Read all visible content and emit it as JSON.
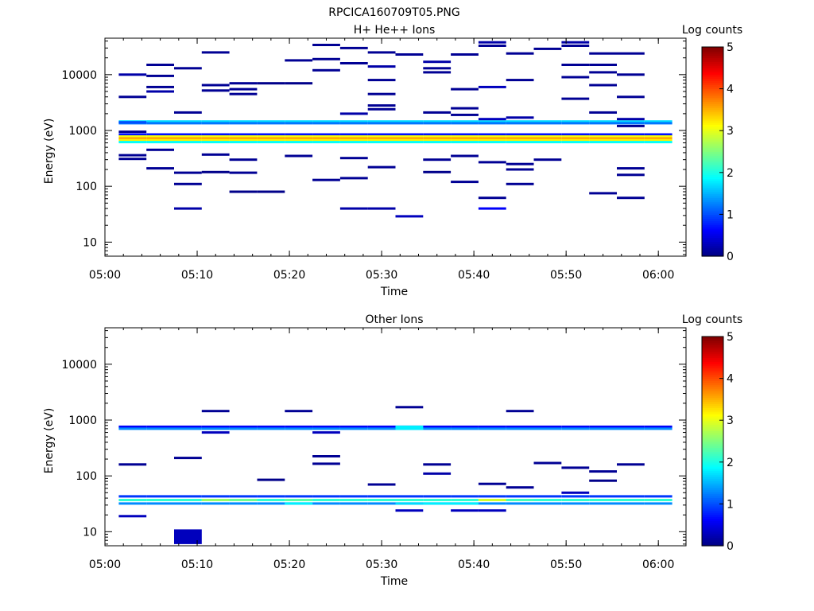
{
  "page_title": "RPCICA160709T05.PNG",
  "chart_data": [
    {
      "type": "heatmap",
      "title": "H+ He++ Ions",
      "xlabel": "Time",
      "ylabel": "Energy (eV)",
      "yscale": "log",
      "ylim": [
        5.6,
        45000
      ],
      "xlim": [
        "05:00",
        "06:03"
      ],
      "x_ticks": [
        "05:00",
        "05:10",
        "05:20",
        "05:30",
        "05:40",
        "05:50",
        "06:00"
      ],
      "y_ticks": [
        "10",
        "100",
        "1000",
        "10000"
      ],
      "colorbar": {
        "label": "Log counts",
        "range": [
          0,
          5
        ],
        "ticks": [
          "0",
          "1",
          "2",
          "3",
          "4",
          "5"
        ],
        "colormap": "jet"
      },
      "grid": false,
      "time_bins": [
        "05:03",
        "05:06",
        "05:09",
        "05:12",
        "05:15",
        "05:18",
        "05:21",
        "05:24",
        "05:27",
        "05:30",
        "05:33",
        "05:36",
        "05:39",
        "05:42",
        "05:45",
        "05:48",
        "05:51",
        "05:54",
        "05:57",
        "06:00"
      ],
      "cells": [
        {
          "t": "05:03",
          "e": 10000,
          "v": 0.2
        },
        {
          "t": "05:03",
          "e": 4000,
          "v": 0.1
        },
        {
          "t": "05:03",
          "e": 1400,
          "v": 1.0
        },
        {
          "t": "05:03",
          "e": 950,
          "v": 0.1
        },
        {
          "t": "05:03",
          "e": 360,
          "v": 0.1
        },
        {
          "t": "05:03",
          "e": 310,
          "v": 0.1
        },
        {
          "t": "05:06",
          "e": 15000,
          "v": 0.1
        },
        {
          "t": "05:06",
          "e": 9500,
          "v": 0.1
        },
        {
          "t": "05:06",
          "e": 6000,
          "v": 0.1
        },
        {
          "t": "05:06",
          "e": 5000,
          "v": 0.2
        },
        {
          "t": "05:06",
          "e": 450,
          "v": 0.1
        },
        {
          "t": "05:06",
          "e": 210,
          "v": 0.1
        },
        {
          "t": "05:09",
          "e": 13000,
          "v": 0.1
        },
        {
          "t": "05:09",
          "e": 2100,
          "v": 0.1
        },
        {
          "t": "05:09",
          "e": 175,
          "v": 0.1
        },
        {
          "t": "05:09",
          "e": 110,
          "v": 0.1
        },
        {
          "t": "05:09",
          "e": 40,
          "v": 0.2
        },
        {
          "t": "05:12",
          "e": 25000,
          "v": 0.1
        },
        {
          "t": "05:12",
          "e": 6500,
          "v": 0.1
        },
        {
          "t": "05:12",
          "e": 5200,
          "v": 0.1
        },
        {
          "t": "05:12",
          "e": 370,
          "v": 0.1
        },
        {
          "t": "05:12",
          "e": 180,
          "v": 0.05
        },
        {
          "t": "05:15",
          "e": 7000,
          "v": 0.1
        },
        {
          "t": "05:15",
          "e": 5500,
          "v": 0.1
        },
        {
          "t": "05:15",
          "e": 4500,
          "v": 0.1
        },
        {
          "t": "05:15",
          "e": 300,
          "v": 0.1
        },
        {
          "t": "05:15",
          "e": 175,
          "v": 0.1
        },
        {
          "t": "05:15",
          "e": 80,
          "v": 0.05
        },
        {
          "t": "05:18",
          "e": 7000,
          "v": 0.05
        },
        {
          "t": "05:18",
          "e": 80,
          "v": 0.05
        },
        {
          "t": "05:21",
          "e": 18000,
          "v": 0.1
        },
        {
          "t": "05:21",
          "e": 7000,
          "v": 0.05
        },
        {
          "t": "05:21",
          "e": 350,
          "v": 0.1
        },
        {
          "t": "05:24",
          "e": 34000,
          "v": 0.1
        },
        {
          "t": "05:24",
          "e": 19000,
          "v": 0.1
        },
        {
          "t": "05:24",
          "e": 12000,
          "v": 0.1
        },
        {
          "t": "05:24",
          "e": 130,
          "v": 0.1
        },
        {
          "t": "05:27",
          "e": 30000,
          "v": 0.1
        },
        {
          "t": "05:27",
          "e": 16000,
          "v": 0.1
        },
        {
          "t": "05:27",
          "e": 2000,
          "v": 0.2
        },
        {
          "t": "05:27",
          "e": 320,
          "v": 0.1
        },
        {
          "t": "05:27",
          "e": 140,
          "v": 0.1
        },
        {
          "t": "05:27",
          "e": 40,
          "v": 0.2
        },
        {
          "t": "05:30",
          "e": 25000,
          "v": 0.1
        },
        {
          "t": "05:30",
          "e": 14000,
          "v": 0.2
        },
        {
          "t": "05:30",
          "e": 8000,
          "v": 0.1
        },
        {
          "t": "05:30",
          "e": 4500,
          "v": 0.1
        },
        {
          "t": "05:30",
          "e": 2800,
          "v": 0.1
        },
        {
          "t": "05:30",
          "e": 2400,
          "v": 0.1
        },
        {
          "t": "05:30",
          "e": 220,
          "v": 0.1
        },
        {
          "t": "05:30",
          "e": 40,
          "v": 0.2
        },
        {
          "t": "05:33",
          "e": 23000,
          "v": 0.1
        },
        {
          "t": "05:33",
          "e": 29,
          "v": 0.3
        },
        {
          "t": "05:36",
          "e": 17000,
          "v": 0.2
        },
        {
          "t": "05:36",
          "e": 13000,
          "v": 0.1
        },
        {
          "t": "05:36",
          "e": 11000,
          "v": 0.1
        },
        {
          "t": "05:36",
          "e": 2100,
          "v": 0.1
        },
        {
          "t": "05:36",
          "e": 300,
          "v": 0.1
        },
        {
          "t": "05:36",
          "e": 180,
          "v": 0.05
        },
        {
          "t": "05:39",
          "e": 23000,
          "v": 0.1
        },
        {
          "t": "05:39",
          "e": 5500,
          "v": 0.1
        },
        {
          "t": "05:39",
          "e": 2500,
          "v": 0.1
        },
        {
          "t": "05:39",
          "e": 1900,
          "v": 0.1
        },
        {
          "t": "05:39",
          "e": 350,
          "v": 0.1
        },
        {
          "t": "05:39",
          "e": 120,
          "v": 0.1
        },
        {
          "t": "05:42",
          "e": 38000,
          "v": 0.2
        },
        {
          "t": "05:42",
          "e": 33000,
          "v": 0.1
        },
        {
          "t": "05:42",
          "e": 6000,
          "v": 0.3
        },
        {
          "t": "05:42",
          "e": 1600,
          "v": 0.3
        },
        {
          "t": "05:42",
          "e": 270,
          "v": 0.1
        },
        {
          "t": "05:42",
          "e": 62,
          "v": 0.1
        },
        {
          "t": "05:42",
          "e": 40,
          "v": 0.6
        },
        {
          "t": "05:45",
          "e": 24000,
          "v": 0.1
        },
        {
          "t": "05:45",
          "e": 8000,
          "v": 0.1
        },
        {
          "t": "05:45",
          "e": 1700,
          "v": 0.2
        },
        {
          "t": "05:45",
          "e": 250,
          "v": 0.1
        },
        {
          "t": "05:45",
          "e": 200,
          "v": 0.1
        },
        {
          "t": "05:45",
          "e": 110,
          "v": 0.1
        },
        {
          "t": "05:48",
          "e": 29000,
          "v": 0.1
        },
        {
          "t": "05:48",
          "e": 300,
          "v": 0.1
        },
        {
          "t": "05:51",
          "e": 38000,
          "v": 0.2
        },
        {
          "t": "05:51",
          "e": 33000,
          "v": 0.1
        },
        {
          "t": "05:51",
          "e": 15000,
          "v": 0.1
        },
        {
          "t": "05:51",
          "e": 9000,
          "v": 0.1
        },
        {
          "t": "05:51",
          "e": 3700,
          "v": 0.1
        },
        {
          "t": "05:54",
          "e": 24000,
          "v": 0.1
        },
        {
          "t": "05:54",
          "e": 15000,
          "v": 0.1
        },
        {
          "t": "05:54",
          "e": 11000,
          "v": 0.1
        },
        {
          "t": "05:54",
          "e": 6500,
          "v": 0.1
        },
        {
          "t": "05:54",
          "e": 2100,
          "v": 0.1
        },
        {
          "t": "05:54",
          "e": 75,
          "v": 0.1
        },
        {
          "t": "05:57",
          "e": 24000,
          "v": 0.1
        },
        {
          "t": "05:57",
          "e": 10000,
          "v": 0.1
        },
        {
          "t": "05:57",
          "e": 4000,
          "v": 0.1
        },
        {
          "t": "05:57",
          "e": 1600,
          "v": 0.2
        },
        {
          "t": "05:57",
          "e": 1200,
          "v": 0.1
        },
        {
          "t": "05:57",
          "e": 210,
          "v": 0.1
        },
        {
          "t": "05:57",
          "e": 160,
          "v": 0.1
        },
        {
          "t": "05:57",
          "e": 62,
          "v": 0.1
        }
      ],
      "bands": [
        {
          "t_from": "05:03",
          "t_to": "06:00",
          "e": 1450,
          "v": 1.7
        },
        {
          "t_from": "05:03",
          "t_to": "06:00",
          "e": 1350,
          "v": 1.2
        },
        {
          "t_from": "05:03",
          "t_to": "06:00",
          "e": 850,
          "v": 0.7
        },
        {
          "t_from": "05:03",
          "t_to": "06:00",
          "e": 780,
          "v": 3.1
        },
        {
          "t_from": "05:03",
          "t_to": "06:00",
          "e": 720,
          "v": 3.6
        },
        {
          "t_from": "05:03",
          "t_to": "06:00",
          "e": 670,
          "v": 3.2
        },
        {
          "t_from": "05:03",
          "t_to": "06:00",
          "e": 620,
          "v": 1.9
        }
      ]
    },
    {
      "type": "heatmap",
      "title": "Other Ions",
      "xlabel": "Time",
      "ylabel": "Energy (eV)",
      "yscale": "log",
      "ylim": [
        5.6,
        45000
      ],
      "xlim": [
        "05:00",
        "06:03"
      ],
      "x_ticks": [
        "05:00",
        "05:10",
        "05:20",
        "05:30",
        "05:40",
        "05:50",
        "06:00"
      ],
      "y_ticks": [
        "10",
        "100",
        "1000",
        "10000"
      ],
      "colorbar": {
        "label": "Log counts",
        "range": [
          0,
          5
        ],
        "ticks": [
          "0",
          "1",
          "2",
          "3",
          "4",
          "5"
        ],
        "colormap": "jet"
      },
      "grid": false,
      "time_bins": [
        "05:03",
        "05:06",
        "05:09",
        "05:12",
        "05:15",
        "05:18",
        "05:21",
        "05:24",
        "05:27",
        "05:30",
        "05:33",
        "05:36",
        "05:39",
        "05:42",
        "05:45",
        "05:48",
        "05:51",
        "05:54",
        "05:57",
        "06:00"
      ],
      "cells": [
        {
          "t": "05:03",
          "e": 160,
          "v": 0.1
        },
        {
          "t": "05:03",
          "e": 19,
          "v": 0.3
        },
        {
          "t": "05:09",
          "e": 210,
          "v": 0.1
        },
        {
          "t": "05:09",
          "e": 10,
          "v": 0.3
        },
        {
          "t": "05:12",
          "e": 1450,
          "v": 0.1
        },
        {
          "t": "05:12",
          "e": 600,
          "v": 0.3
        },
        {
          "t": "05:18",
          "e": 85,
          "v": 0.05
        },
        {
          "t": "05:21",
          "e": 1450,
          "v": 0.1
        },
        {
          "t": "05:24",
          "e": 225,
          "v": 0.1
        },
        {
          "t": "05:24",
          "e": 165,
          "v": 0.1
        },
        {
          "t": "05:24",
          "e": 600,
          "v": 0.3
        },
        {
          "t": "05:30",
          "e": 70,
          "v": 0.1
        },
        {
          "t": "05:33",
          "e": 1700,
          "v": 0.1
        },
        {
          "t": "05:33",
          "e": 24,
          "v": 0.3
        },
        {
          "t": "05:36",
          "e": 160,
          "v": 0.1
        },
        {
          "t": "05:36",
          "e": 110,
          "v": 0.2
        },
        {
          "t": "05:39",
          "e": 24,
          "v": 0.3
        },
        {
          "t": "05:42",
          "e": 72,
          "v": 0.1
        },
        {
          "t": "05:42",
          "e": 24,
          "v": 0.3
        },
        {
          "t": "05:45",
          "e": 1450,
          "v": 0.1
        },
        {
          "t": "05:45",
          "e": 62,
          "v": 0.1
        },
        {
          "t": "05:48",
          "e": 170,
          "v": 0.1
        },
        {
          "t": "05:51",
          "e": 140,
          "v": 0.1
        },
        {
          "t": "05:51",
          "e": 50,
          "v": 0.3
        },
        {
          "t": "05:54",
          "e": 120,
          "v": 0.1
        },
        {
          "t": "05:54",
          "e": 82,
          "v": 0.05
        },
        {
          "t": "05:57",
          "e": 160,
          "v": 0.1
        }
      ],
      "bands": [
        {
          "t_from": "05:03",
          "t_to": "06:00",
          "e": 760,
          "v": 0.6
        },
        {
          "t_from": "05:03",
          "t_to": "06:00",
          "e": 700,
          "v": 1.3
        },
        {
          "t_from": "05:03",
          "t_to": "06:00",
          "e": 43,
          "v": 0.9
        },
        {
          "t_from": "05:03",
          "t_to": "06:00",
          "e": 37,
          "v": 2.1
        },
        {
          "t_from": "05:03",
          "t_to": "06:00",
          "e": 32,
          "v": 1.3
        }
      ],
      "band_overrides": [
        {
          "t": "05:33",
          "e": 700,
          "v": 1.8
        },
        {
          "t": "05:33",
          "e": 760,
          "v": 1.8
        },
        {
          "t": "05:12",
          "e": 37,
          "v": 2.6
        },
        {
          "t": "05:15",
          "e": 37,
          "v": 2.4
        },
        {
          "t": "05:21",
          "e": 37,
          "v": 2.3
        },
        {
          "t": "05:42",
          "e": 37,
          "v": 2.9
        },
        {
          "t": "05:45",
          "e": 37,
          "v": 2.2
        },
        {
          "t": "05:21",
          "e": 32,
          "v": 1.8
        },
        {
          "t": "05:33",
          "e": 32,
          "v": 1.7
        },
        {
          "t": "05:36",
          "e": 32,
          "v": 1.8
        },
        {
          "t": "05:39",
          "e": 32,
          "v": 1.8
        }
      ]
    }
  ]
}
